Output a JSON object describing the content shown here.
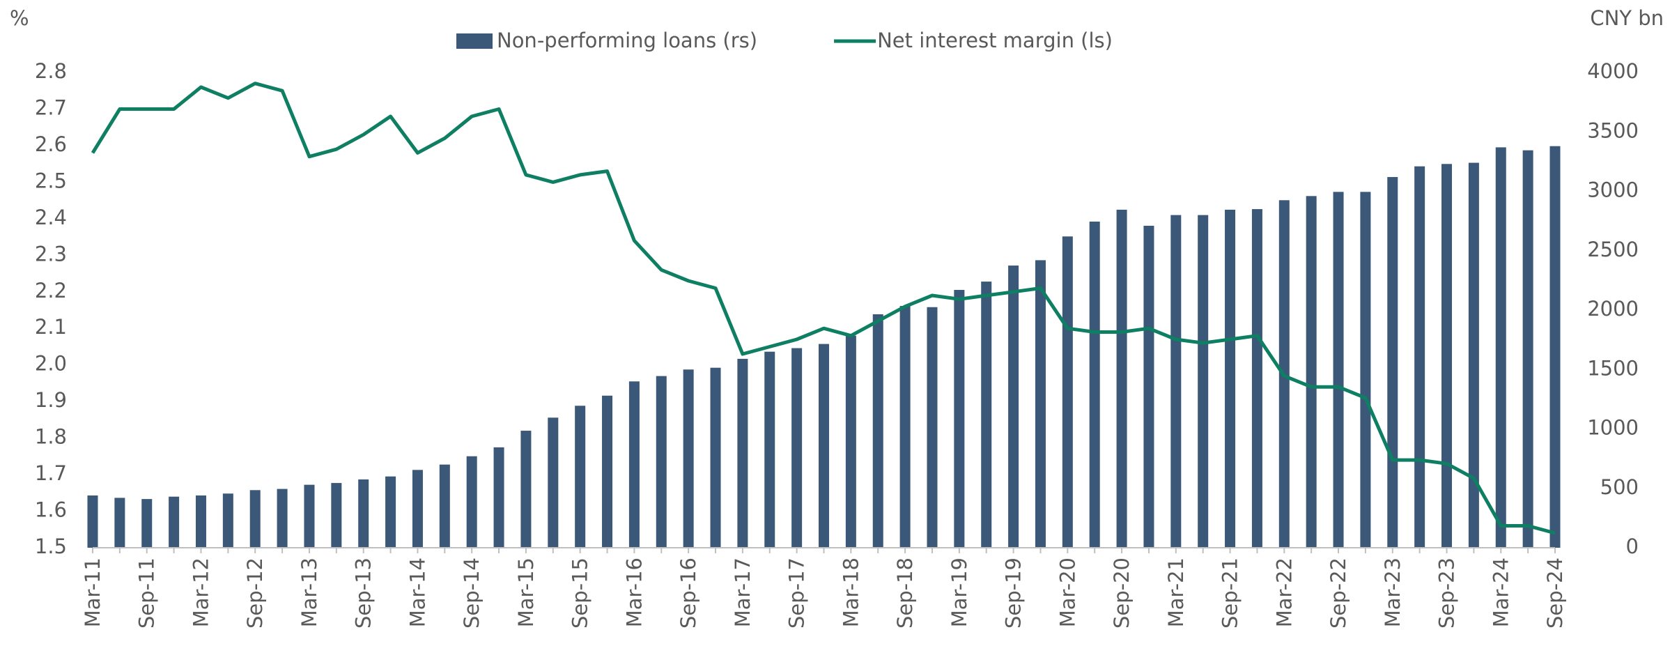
{
  "chart_data": {
    "type": "bar-line",
    "y_label": "%",
    "y2_label": "CNY bn",
    "categories": [
      "Mar-11",
      null,
      "Sep-11",
      null,
      "Mar-12",
      null,
      "Sep-12",
      null,
      "Mar-13",
      null,
      "Sep-13",
      null,
      "Mar-14",
      null,
      "Sep-14",
      null,
      "Mar-15",
      null,
      "Sep-15",
      null,
      "Mar-16",
      null,
      "Sep-16",
      null,
      "Mar-17",
      null,
      "Sep-17",
      null,
      "Mar-18",
      null,
      "Sep-18",
      null,
      "Mar-19",
      null,
      "Sep-19",
      null,
      "Mar-20",
      null,
      "Sep-20",
      null,
      "Mar-21",
      null,
      "Sep-21",
      null,
      "Mar-22",
      null,
      "Sep-22",
      null,
      "Mar-23",
      null,
      "Sep-23",
      null,
      "Mar-24",
      null,
      "Sep-24"
    ],
    "series": [
      {
        "name": "Non-performing loans (rs)",
        "kind": "bar",
        "axis": "y2",
        "color": "#3b5878",
        "values": [
          440,
          420,
          410,
          430,
          440,
          456,
          485,
          495,
          530,
          545,
          575,
          600,
          655,
          700,
          770,
          845,
          985,
          1095,
          1195,
          1280,
          1400,
          1445,
          1500,
          1515,
          1590,
          1650,
          1680,
          1715,
          1785,
          1965,
          2035,
          2025,
          2170,
          2240,
          2375,
          2420,
          2620,
          2745,
          2845,
          2710,
          2800,
          2800,
          2845,
          2850,
          2925,
          2960,
          2995,
          2995,
          3120,
          3210,
          3230,
          3240,
          3370,
          3345,
          3380
        ]
      },
      {
        "name": "Net interest margin (ls)",
        "kind": "line",
        "axis": "y",
        "color": "#0e7f62",
        "values": [
          2.58,
          2.7,
          2.7,
          2.7,
          2.76,
          2.73,
          2.77,
          2.75,
          2.57,
          2.59,
          2.63,
          2.68,
          2.58,
          2.62,
          2.68,
          2.7,
          2.52,
          2.5,
          2.52,
          2.53,
          2.34,
          2.26,
          2.23,
          2.21,
          2.03,
          2.05,
          2.07,
          2.1,
          2.08,
          2.12,
          2.16,
          2.19,
          2.18,
          2.19,
          2.2,
          2.21,
          2.1,
          2.09,
          2.09,
          2.1,
          2.07,
          2.06,
          2.07,
          2.08,
          1.97,
          1.94,
          1.94,
          1.91,
          1.74,
          1.74,
          1.73,
          1.69,
          1.56,
          1.56,
          1.54
        ]
      }
    ],
    "ylim": [
      1.5,
      2.8
    ],
    "yticks": [
      1.5,
      1.6,
      1.7,
      1.8,
      1.9,
      {
        "value": 2,
        "label": "2.0"
      },
      2.1,
      2.2,
      2.3,
      2.4,
      2.5,
      2.6,
      2.7,
      2.8
    ],
    "y2lim": [
      0,
      4000
    ],
    "y2ticks": [
      0,
      500,
      1000,
      1500,
      2000,
      2500,
      3000,
      3500,
      4000
    ],
    "grid": false,
    "legend": "top"
  }
}
